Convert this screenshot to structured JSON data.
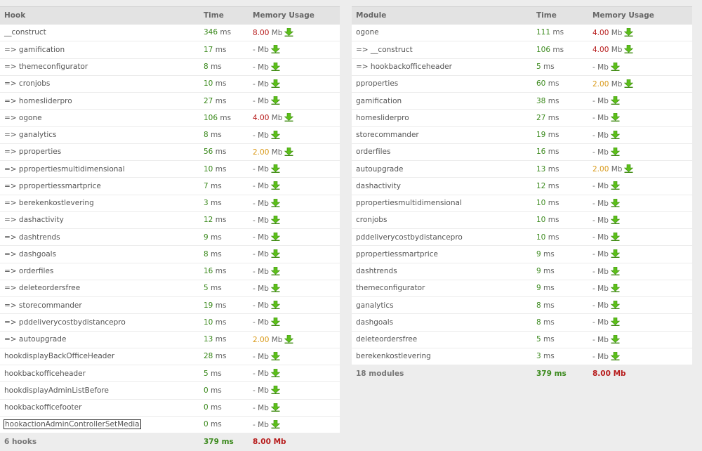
{
  "colors": {
    "green": "#3c8a1e",
    "red": "#b71c1c",
    "orange": "#d99a1a",
    "icon": "#5cbf1a"
  },
  "hooks_panel": {
    "headers": {
      "name": "Hook",
      "time": "Time",
      "memory": "Memory Usage"
    },
    "rows": [
      {
        "name": "__construct",
        "time": "346",
        "mem": "8.00",
        "level": "red"
      },
      {
        "name": "=> gamification",
        "time": "17",
        "mem": "-",
        "level": "none"
      },
      {
        "name": "=> themeconfigurator",
        "time": "8",
        "mem": "-",
        "level": "none"
      },
      {
        "name": "=> cronjobs",
        "time": "10",
        "mem": "-",
        "level": "none"
      },
      {
        "name": "=> homesliderpro",
        "time": "27",
        "mem": "-",
        "level": "none"
      },
      {
        "name": "=> ogone",
        "time": "106",
        "mem": "4.00",
        "level": "red"
      },
      {
        "name": "=> ganalytics",
        "time": "8",
        "mem": "-",
        "level": "none"
      },
      {
        "name": "=> pproperties",
        "time": "56",
        "mem": "2.00",
        "level": "orange"
      },
      {
        "name": "=> ppropertiesmultidimensional",
        "time": "10",
        "mem": "-",
        "level": "none"
      },
      {
        "name": "=> ppropertiessmartprice",
        "time": "7",
        "mem": "-",
        "level": "none"
      },
      {
        "name": "=> berekenkostlevering",
        "time": "3",
        "mem": "-",
        "level": "none"
      },
      {
        "name": "=> dashactivity",
        "time": "12",
        "mem": "-",
        "level": "none"
      },
      {
        "name": "=> dashtrends",
        "time": "9",
        "mem": "-",
        "level": "none"
      },
      {
        "name": "=> dashgoals",
        "time": "8",
        "mem": "-",
        "level": "none"
      },
      {
        "name": "=> orderfiles",
        "time": "16",
        "mem": "-",
        "level": "none"
      },
      {
        "name": "=> deleteordersfree",
        "time": "5",
        "mem": "-",
        "level": "none"
      },
      {
        "name": "=> storecommander",
        "time": "19",
        "mem": "-",
        "level": "none"
      },
      {
        "name": "=> pddeliverycostbydistancepro",
        "time": "10",
        "mem": "-",
        "level": "none"
      },
      {
        "name": "=> autoupgrade",
        "time": "13",
        "mem": "2.00",
        "level": "orange"
      },
      {
        "name": "hookdisplayBackOfficeHeader",
        "time": "28",
        "mem": "-",
        "level": "none"
      },
      {
        "name": "hookbackofficeheader",
        "time": "5",
        "mem": "-",
        "level": "none"
      },
      {
        "name": "hookdisplayAdminListBefore",
        "time": "0",
        "mem": "-",
        "level": "none"
      },
      {
        "name": "hookbackofficefooter",
        "time": "0",
        "mem": "-",
        "level": "none"
      },
      {
        "name": "hookactionAdminControllerSetMedia",
        "time": "0",
        "mem": "-",
        "level": "none",
        "focused": true
      }
    ],
    "footer": {
      "count": "6 hooks",
      "time": "379",
      "mem": "8.00"
    }
  },
  "modules_panel": {
    "headers": {
      "name": "Module",
      "time": "Time",
      "memory": "Memory Usage"
    },
    "rows": [
      {
        "name": "ogone",
        "time": "111",
        "mem": "4.00",
        "level": "red"
      },
      {
        "name": "=> __construct",
        "time": "106",
        "mem": "4.00",
        "level": "red"
      },
      {
        "name": "=> hookbackofficeheader",
        "time": "5",
        "mem": "-",
        "level": "none"
      },
      {
        "name": "pproperties",
        "time": "60",
        "mem": "2.00",
        "level": "orange"
      },
      {
        "name": "gamification",
        "time": "38",
        "mem": "-",
        "level": "none"
      },
      {
        "name": "homesliderpro",
        "time": "27",
        "mem": "-",
        "level": "none"
      },
      {
        "name": "storecommander",
        "time": "19",
        "mem": "-",
        "level": "none"
      },
      {
        "name": "orderfiles",
        "time": "16",
        "mem": "-",
        "level": "none"
      },
      {
        "name": "autoupgrade",
        "time": "13",
        "mem": "2.00",
        "level": "orange"
      },
      {
        "name": "dashactivity",
        "time": "12",
        "mem": "-",
        "level": "none"
      },
      {
        "name": "ppropertiesmultidimensional",
        "time": "10",
        "mem": "-",
        "level": "none"
      },
      {
        "name": "cronjobs",
        "time": "10",
        "mem": "-",
        "level": "none"
      },
      {
        "name": "pddeliverycostbydistancepro",
        "time": "10",
        "mem": "-",
        "level": "none"
      },
      {
        "name": "ppropertiessmartprice",
        "time": "9",
        "mem": "-",
        "level": "none"
      },
      {
        "name": "dashtrends",
        "time": "9",
        "mem": "-",
        "level": "none"
      },
      {
        "name": "themeconfigurator",
        "time": "9",
        "mem": "-",
        "level": "none"
      },
      {
        "name": "ganalytics",
        "time": "8",
        "mem": "-",
        "level": "none"
      },
      {
        "name": "dashgoals",
        "time": "8",
        "mem": "-",
        "level": "none"
      },
      {
        "name": "deleteordersfree",
        "time": "5",
        "mem": "-",
        "level": "none"
      },
      {
        "name": "berekenkostlevering",
        "time": "3",
        "mem": "-",
        "level": "none"
      }
    ],
    "footer": {
      "count": "18 modules",
      "time": "379",
      "mem": "8.00"
    }
  },
  "units": {
    "time": "ms",
    "memory": "Mb"
  },
  "icons": {
    "memory_detail": "download-arrow-icon"
  }
}
